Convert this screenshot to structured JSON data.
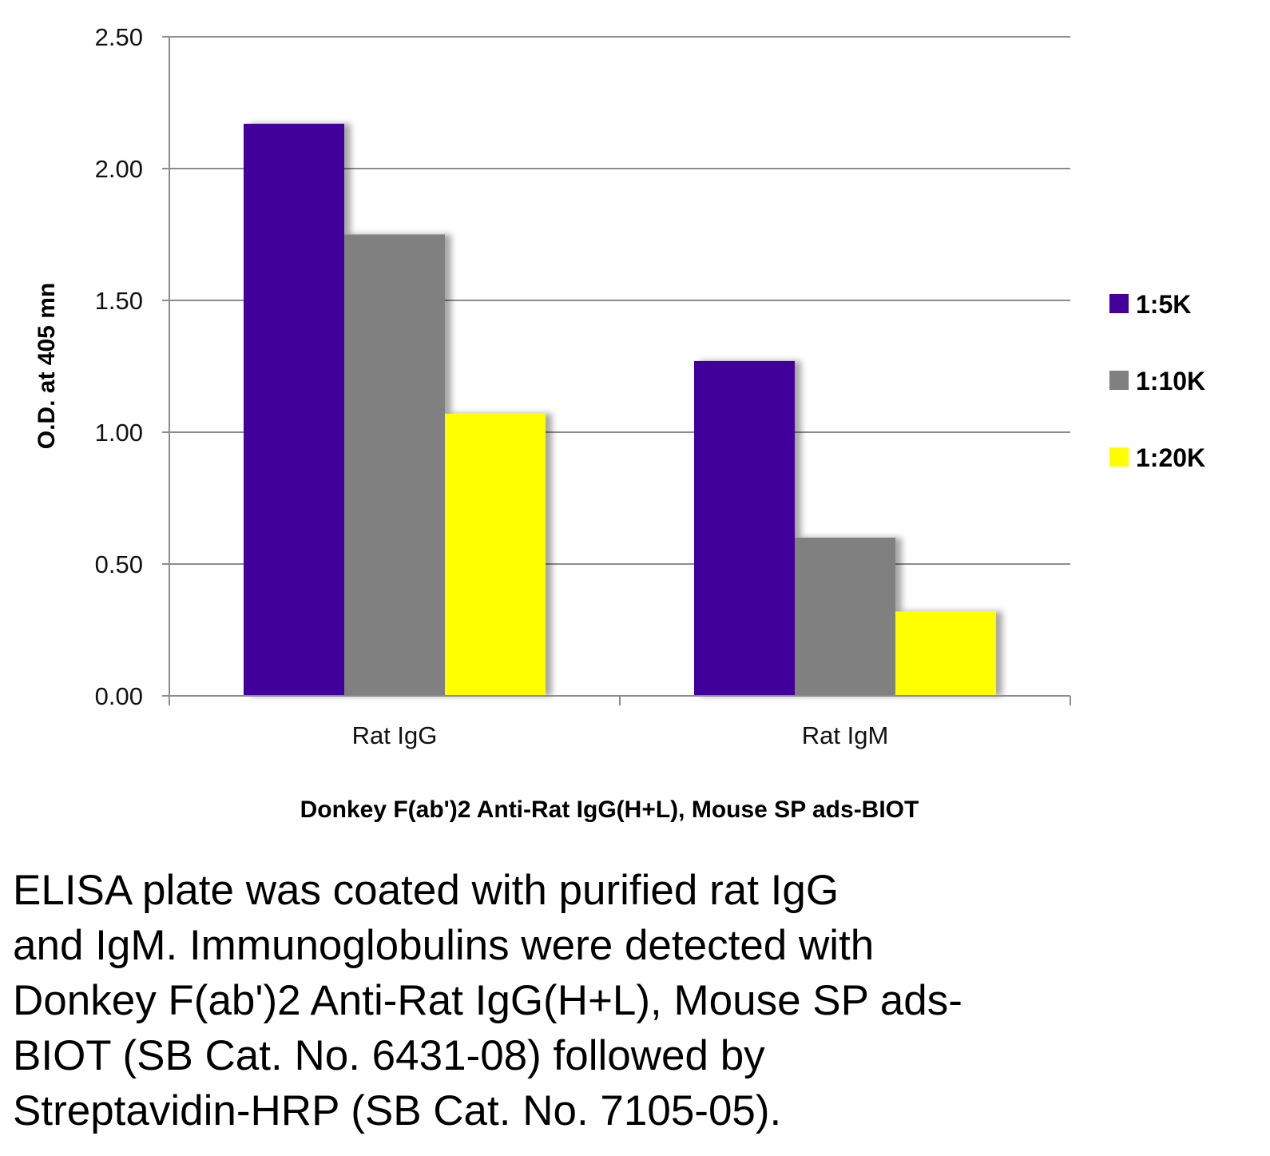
{
  "chart_data": {
    "type": "bar",
    "categories": [
      "Rat IgG",
      "Rat IgM"
    ],
    "series": [
      {
        "name": "1:5K",
        "color": "#43009a",
        "values": [
          2.17,
          1.27
        ]
      },
      {
        "name": "1:10K",
        "color": "#808080",
        "values": [
          1.75,
          0.6
        ]
      },
      {
        "name": "1:20K",
        "color": "#ffff00",
        "values": [
          1.07,
          0.32
        ]
      }
    ],
    "ylabel": "O.D. at 405 mn",
    "xlabel": "Donkey F(ab')2 Anti-Rat IgG(H+L), Mouse SP ads-BIOT",
    "ylim": [
      0,
      2.5
    ],
    "yticks": [
      "0.00",
      "0.50",
      "1.00",
      "1.50",
      "2.00",
      "2.50"
    ],
    "grid": true,
    "legend_position": "right"
  },
  "caption_lines": [
    "ELISA plate was coated with purified rat IgG",
    "and IgM.  Immunoglobulins were detected with",
    "Donkey F(ab')2 Anti-Rat IgG(H+L), Mouse SP ads-",
    "BIOT (SB Cat. No. 6431-08) followed by",
    "Streptavidin-HRP (SB Cat. No. 7105-05)."
  ]
}
